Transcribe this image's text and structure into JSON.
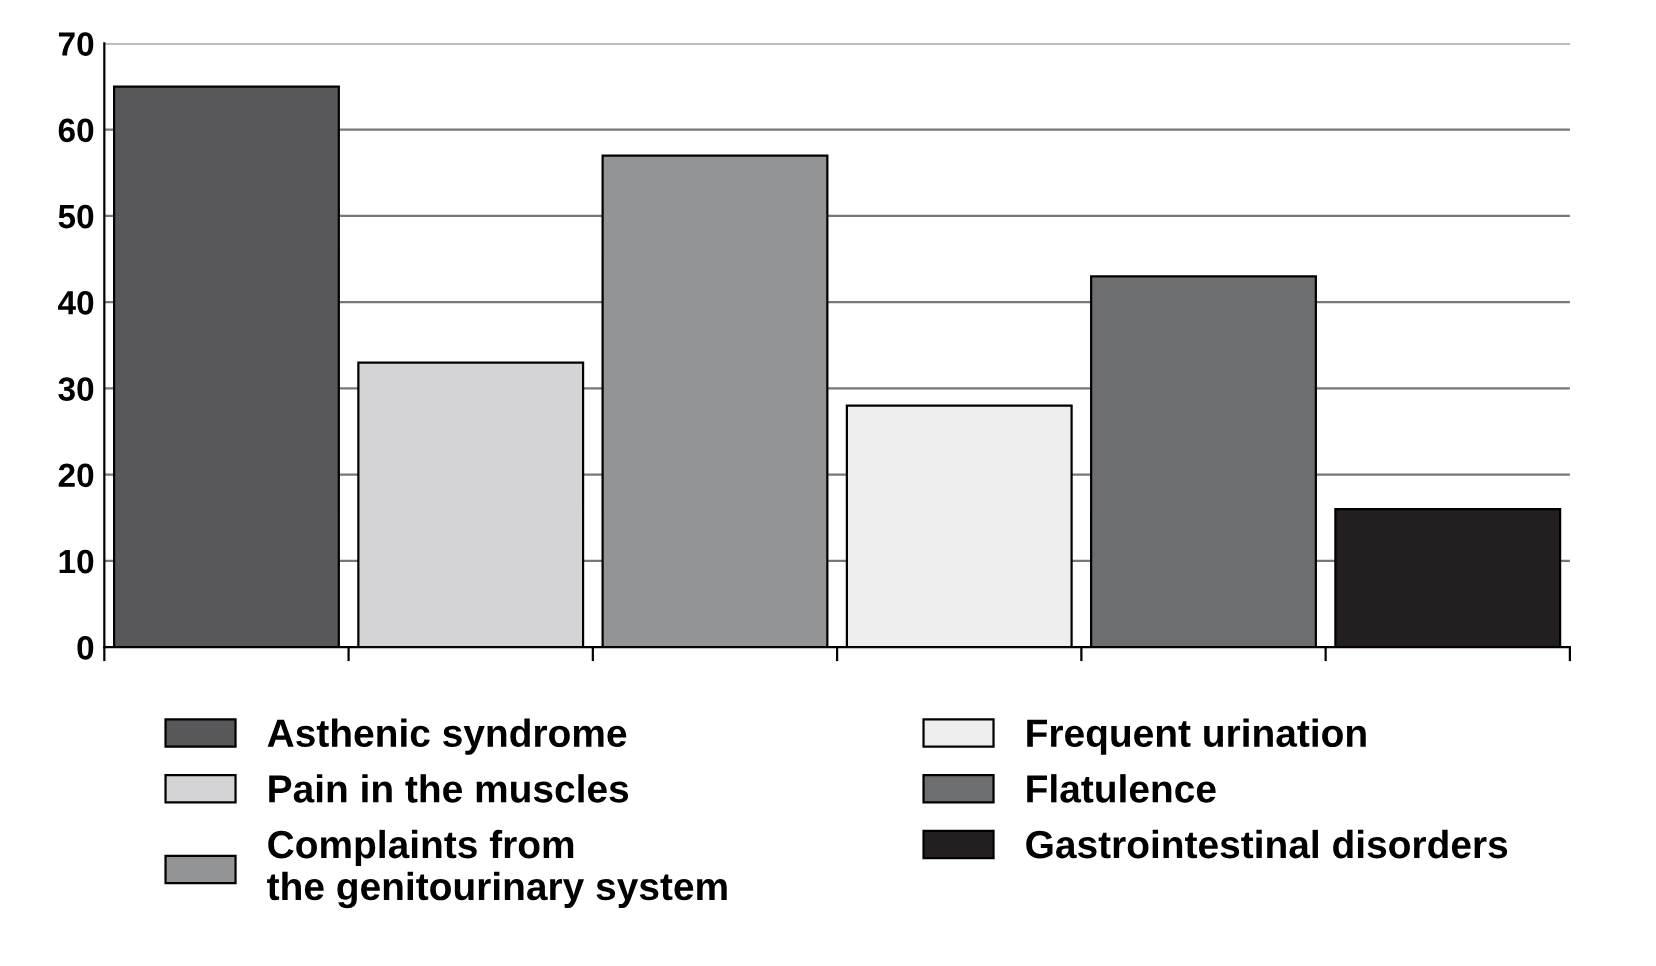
{
  "chart_data": {
    "type": "bar",
    "categories": [
      null,
      null,
      null,
      null,
      null,
      null
    ],
    "series": [
      {
        "name": "Asthenic syndrome",
        "color": "#58585a",
        "values": [
          65,
          null,
          null,
          null,
          null,
          null
        ]
      },
      {
        "name": "Pain in the muscles",
        "color": "#d4d4d6",
        "values": [
          null,
          33,
          null,
          null,
          null,
          null
        ]
      },
      {
        "name": "Complaints from\nthe genitourinary system",
        "color": "#939496",
        "values": [
          null,
          null,
          57,
          null,
          null,
          null
        ]
      },
      {
        "name": "Frequent urination",
        "color": "#eeeeee",
        "values": [
          null,
          null,
          null,
          28,
          null,
          null
        ]
      },
      {
        "name": "Flatulence",
        "color": "#6d6e70",
        "values": [
          null,
          null,
          null,
          null,
          43,
          null
        ]
      },
      {
        "name": "Gastrointestinal disorders",
        "color": "#231f20",
        "values": [
          null,
          null,
          null,
          null,
          null,
          16
        ]
      }
    ],
    "ylim": [
      0,
      70
    ],
    "yticks": [
      0,
      10,
      20,
      30,
      40,
      50,
      60,
      70
    ],
    "grid": "y",
    "legend": "bottom"
  }
}
